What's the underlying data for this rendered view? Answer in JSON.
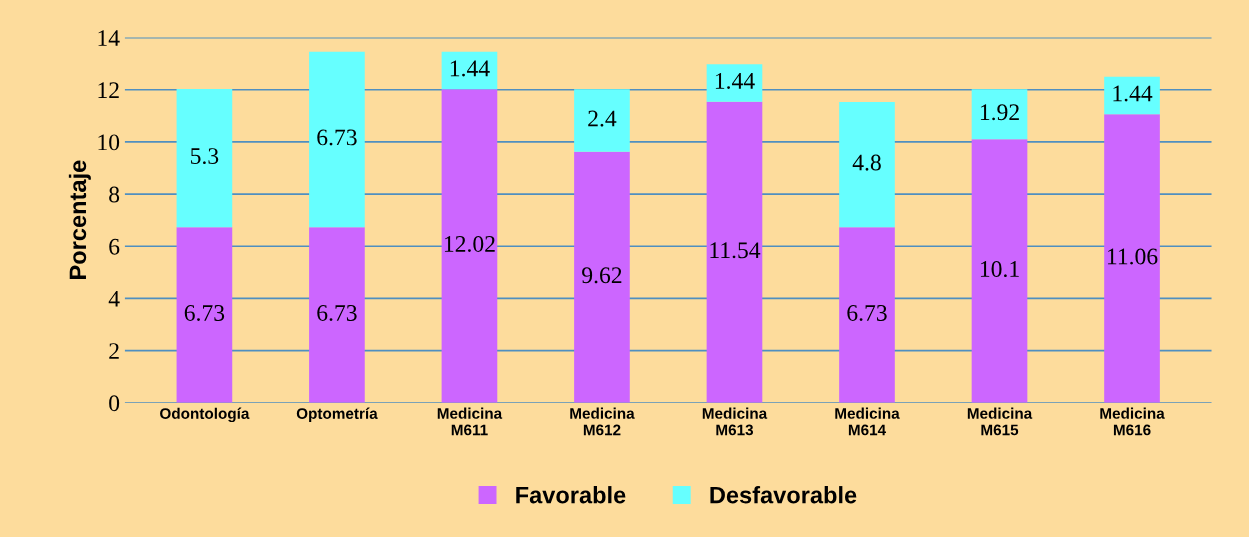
{
  "chart_data": {
    "type": "bar",
    "stacked": true,
    "ylabel": "Porcentaje",
    "categories": [
      "Odontología",
      "Optometría",
      "Medicina\nM611",
      "Medicina\nM612",
      "Medicina\nM613",
      "Medicina\nM614",
      "Medicina\nM615",
      "Medicina\nM616"
    ],
    "series": [
      {
        "name": "Favorable",
        "color": "#cc66ff",
        "values": [
          6.73,
          6.73,
          12.02,
          9.62,
          11.54,
          6.73,
          10.1,
          11.06
        ]
      },
      {
        "name": "Desfavorable",
        "color": "#66ffff",
        "values": [
          5.3,
          6.73,
          1.44,
          2.4,
          1.44,
          4.8,
          1.92,
          1.44
        ]
      }
    ],
    "ylim": [
      0,
      14
    ],
    "yticks": [
      0,
      2,
      4,
      6,
      8,
      10,
      12,
      14
    ],
    "grid": "y",
    "legend": "bottom",
    "data_labels": true
  }
}
